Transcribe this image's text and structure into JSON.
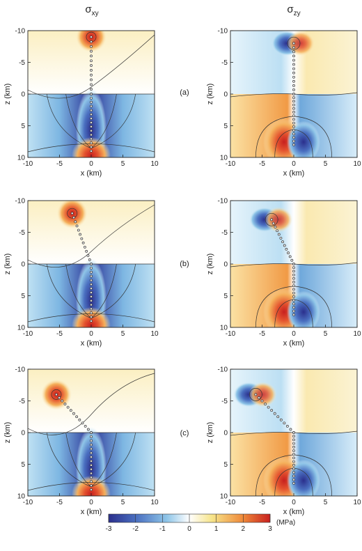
{
  "columns": [
    {
      "symbol": "σ",
      "subscript": "xy"
    },
    {
      "symbol": "σ",
      "subscript": "zy"
    }
  ],
  "panels": [
    {
      "letter": "(a)"
    },
    {
      "letter": "(b)"
    },
    {
      "letter": "(c)"
    }
  ],
  "colorbar": {
    "ticks": [
      "-3",
      "-2",
      "-1",
      "0",
      "1",
      "2",
      "3"
    ],
    "unit": "(MPa)",
    "range": [
      -3,
      3
    ],
    "colors": [
      "#2b2f8c",
      "#4a6fc0",
      "#8ec5e8",
      "#ffffff",
      "#f6e48a",
      "#ef8a3a",
      "#c8201f"
    ]
  },
  "chart_data": [
    {
      "type": "heatmap",
      "title": "σxy",
      "panel": "(a)",
      "xlabel": "x (km)",
      "ylabel": "z (km)",
      "xlim": [
        -10,
        10
      ],
      "ylim": [
        -10,
        10
      ],
      "y_inverted": true,
      "xticks": [
        "-10",
        "-5",
        "0",
        "5",
        "10"
      ],
      "yticks": [
        "-10",
        "-5",
        "0",
        "5",
        "10"
      ],
      "fault_trace": {
        "x": [
          0,
          0,
          0
        ],
        "z": [
          -9,
          0,
          9
        ]
      }
    },
    {
      "type": "heatmap",
      "title": "σzy",
      "panel": "(a)",
      "xlabel": "x (km)",
      "ylabel": "z (km)",
      "xlim": [
        -10,
        10
      ],
      "ylim": [
        -10,
        10
      ],
      "y_inverted": true,
      "xticks": [
        "-10",
        "-5",
        "0",
        "5",
        "10"
      ],
      "yticks": [
        "-10",
        "-5",
        "0",
        "5",
        "10"
      ],
      "fault_trace": {
        "x": [
          0,
          0,
          0
        ],
        "z": [
          -8,
          0,
          8
        ]
      }
    },
    {
      "type": "heatmap",
      "title": "σxy",
      "panel": "(b)",
      "xlabel": "x (km)",
      "ylabel": "z (km)",
      "xlim": [
        -10,
        10
      ],
      "ylim": [
        -10,
        10
      ],
      "y_inverted": true,
      "xticks": [
        "-10",
        "-5",
        "0",
        "5",
        "10"
      ],
      "yticks": [
        "-10",
        "-5",
        "0",
        "5",
        "10"
      ],
      "fault_trace": {
        "x": [
          -3,
          0,
          0
        ],
        "z": [
          -8,
          0,
          9
        ]
      }
    },
    {
      "type": "heatmap",
      "title": "σzy",
      "panel": "(b)",
      "xlabel": "x (km)",
      "ylabel": "z (km)",
      "xlim": [
        -10,
        10
      ],
      "ylim": [
        -10,
        10
      ],
      "y_inverted": true,
      "xticks": [
        "-10",
        "-5",
        "0",
        "5",
        "10"
      ],
      "yticks": [
        "-10",
        "-5",
        "0",
        "5",
        "10"
      ],
      "fault_trace": {
        "x": [
          -3.5,
          0,
          0
        ],
        "z": [
          -7,
          0,
          8
        ]
      }
    },
    {
      "type": "heatmap",
      "title": "σxy",
      "panel": "(c)",
      "xlabel": "x (km)",
      "ylabel": "z (km)",
      "xlim": [
        -10,
        10
      ],
      "ylim": [
        -10,
        10
      ],
      "y_inverted": true,
      "xticks": [
        "-10",
        "-5",
        "0",
        "5",
        "10"
      ],
      "yticks": [
        "-10",
        "-5",
        "0",
        "5",
        "10"
      ],
      "fault_trace": {
        "x": [
          -5.5,
          0,
          0
        ],
        "z": [
          -6,
          0,
          9
        ]
      }
    },
    {
      "type": "heatmap",
      "title": "σzy",
      "panel": "(c)",
      "xlabel": "x (km)",
      "ylabel": "z (km)",
      "xlim": [
        -10,
        10
      ],
      "ylim": [
        -10,
        10
      ],
      "y_inverted": true,
      "xticks": [
        "-10",
        "-5",
        "0",
        "5",
        "10"
      ],
      "yticks": [
        "-10",
        "-5",
        "0",
        "5",
        "10"
      ],
      "fault_trace": {
        "x": [
          -6,
          0,
          0
        ],
        "z": [
          -6,
          0,
          8
        ]
      }
    }
  ]
}
